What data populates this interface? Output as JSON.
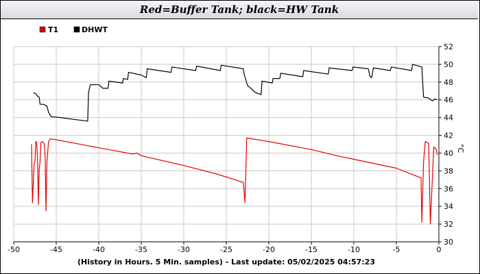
{
  "chart_data": {
    "type": "line",
    "title": "Red=Buffer Tank; black=HW Tank",
    "xlabel": "(History in Hours. 5 Min. samples) - Last update: 05/02/2025 04:57:23",
    "ylabel": "°C",
    "xlim": [
      -50,
      0
    ],
    "ylim": [
      30,
      52
    ],
    "x_ticks": [
      -50,
      -45,
      -40,
      -35,
      -30,
      -25,
      -20,
      -15,
      -10,
      -5,
      0
    ],
    "y_ticks": [
      30,
      32,
      34,
      36,
      38,
      40,
      42,
      44,
      46,
      48,
      50,
      52
    ],
    "grid": true,
    "legend_position": "top-left",
    "series": [
      {
        "name": "T1",
        "color": "#e00000",
        "points": [
          [
            -47.9,
            41.0
          ],
          [
            -47.8,
            34.4
          ],
          [
            -47.6,
            38.8
          ],
          [
            -47.5,
            39.0
          ],
          [
            -47.4,
            41.3
          ],
          [
            -47.3,
            41.2
          ],
          [
            -47.2,
            39.5
          ],
          [
            -47.1,
            34.2
          ],
          [
            -47.0,
            38.2
          ],
          [
            -46.9,
            39.0
          ],
          [
            -46.8,
            41.2
          ],
          [
            -46.6,
            41.3
          ],
          [
            -46.4,
            41.0
          ],
          [
            -46.3,
            39.5
          ],
          [
            -46.2,
            33.5
          ],
          [
            -46.1,
            39.0
          ],
          [
            -45.9,
            41.3
          ],
          [
            -45.7,
            41.6
          ],
          [
            -45.0,
            41.5
          ],
          [
            -40.0,
            40.6
          ],
          [
            -36.0,
            39.9
          ],
          [
            -35.5,
            40.0
          ],
          [
            -35.0,
            39.7
          ],
          [
            -30.0,
            38.6
          ],
          [
            -26.0,
            37.6
          ],
          [
            -23.0,
            36.7
          ],
          [
            -22.8,
            34.4
          ],
          [
            -22.6,
            41.7
          ],
          [
            -20.0,
            41.3
          ],
          [
            -15.0,
            40.4
          ],
          [
            -12.0,
            39.7
          ],
          [
            -11.0,
            39.5
          ],
          [
            -10.0,
            39.3
          ],
          [
            -5.0,
            38.3
          ],
          [
            -2.1,
            37.2
          ],
          [
            -2.0,
            32.2
          ],
          [
            -1.8,
            39.0
          ],
          [
            -1.6,
            41.3
          ],
          [
            -1.2,
            41.1
          ],
          [
            -1.0,
            32.0
          ],
          [
            -0.6,
            40.7
          ],
          [
            -0.3,
            40.4
          ],
          [
            -0.2,
            39.8
          ]
        ]
      },
      {
        "name": "DHWT",
        "color": "#000000",
        "points": [
          [
            -47.7,
            46.8
          ],
          [
            -47.4,
            46.7
          ],
          [
            -47.2,
            46.4
          ],
          [
            -47.0,
            46.3
          ],
          [
            -46.9,
            45.5
          ],
          [
            -46.5,
            45.5
          ],
          [
            -46.1,
            45.3
          ],
          [
            -45.9,
            44.6
          ],
          [
            -45.6,
            44.1
          ],
          [
            -44.5,
            44.0
          ],
          [
            -43.0,
            43.8
          ],
          [
            -41.3,
            43.6
          ],
          [
            -41.2,
            46.8
          ],
          [
            -41.0,
            47.7
          ],
          [
            -40.0,
            47.7
          ],
          [
            -39.5,
            47.3
          ],
          [
            -38.9,
            47.3
          ],
          [
            -38.8,
            48.1
          ],
          [
            -37.2,
            47.9
          ],
          [
            -37.1,
            48.4
          ],
          [
            -36.6,
            48.3
          ],
          [
            -36.5,
            49.1
          ],
          [
            -35.0,
            48.8
          ],
          [
            -34.4,
            48.5
          ],
          [
            -34.3,
            49.5
          ],
          [
            -31.5,
            49.1
          ],
          [
            -31.4,
            49.7
          ],
          [
            -28.6,
            49.3
          ],
          [
            -28.5,
            49.8
          ],
          [
            -25.7,
            49.3
          ],
          [
            -25.6,
            49.9
          ],
          [
            -23.0,
            49.5
          ],
          [
            -22.9,
            48.9
          ],
          [
            -22.5,
            47.6
          ],
          [
            -22.0,
            47.2
          ],
          [
            -21.8,
            47.0
          ],
          [
            -21.5,
            46.8
          ],
          [
            -20.9,
            46.6
          ],
          [
            -20.8,
            48.1
          ],
          [
            -19.6,
            47.9
          ],
          [
            -19.5,
            48.4
          ],
          [
            -18.7,
            48.4
          ],
          [
            -18.6,
            49.0
          ],
          [
            -16.0,
            48.6
          ],
          [
            -15.9,
            49.3
          ],
          [
            -13.0,
            48.9
          ],
          [
            -12.9,
            49.6
          ],
          [
            -10.2,
            49.3
          ],
          [
            -10.1,
            49.7
          ],
          [
            -8.3,
            49.5
          ],
          [
            -8.1,
            48.6
          ],
          [
            -7.9,
            48.5
          ],
          [
            -7.7,
            49.6
          ],
          [
            -5.7,
            49.3
          ],
          [
            -5.6,
            49.7
          ],
          [
            -3.2,
            49.3
          ],
          [
            -3.1,
            50.0
          ],
          [
            -2.0,
            49.7
          ],
          [
            -1.9,
            48.0
          ],
          [
            -1.8,
            46.3
          ],
          [
            -1.2,
            46.2
          ],
          [
            -1.0,
            46.0
          ],
          [
            -0.7,
            45.9
          ],
          [
            -0.5,
            46.1
          ],
          [
            -0.2,
            46.0
          ]
        ]
      }
    ]
  }
}
